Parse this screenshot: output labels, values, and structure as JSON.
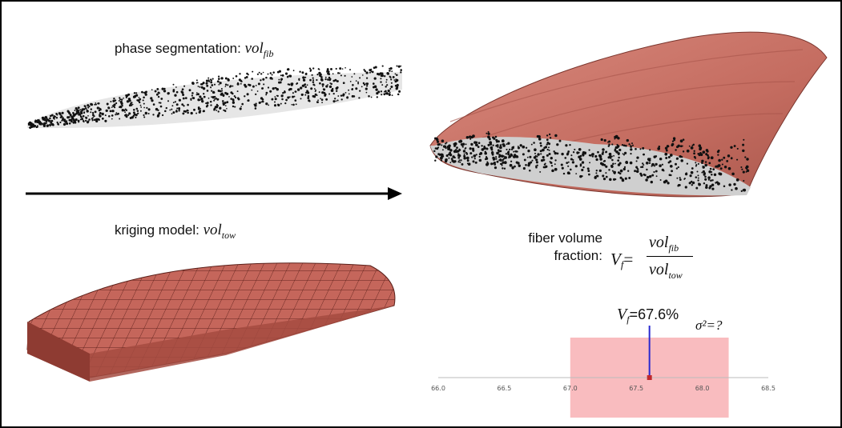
{
  "labels": {
    "phase_seg_text": "phase segmentation:",
    "phase_seg_var": "vol",
    "phase_seg_sub": "fib",
    "kriging_text": "kriging model:",
    "kriging_var": "vol",
    "kriging_sub": "tow",
    "fvf_line1": "fiber volume",
    "fvf_line2": "fraction:",
    "formula_lhs": "V",
    "formula_lhs_sub": "f",
    "formula_eq": "=",
    "num_var": "vol",
    "num_sub": "fib",
    "den_var": "vol",
    "den_sub": "tow",
    "vf_label": "V",
    "vf_sub": "f",
    "vf_value": "=67.6%",
    "sigma_label": "σ²=?"
  },
  "chart_data": {
    "type": "interval",
    "xlim": [
      66.0,
      68.5
    ],
    "ticks": [
      "66.0",
      "66.5",
      "67.0",
      "67.5",
      "68.0",
      "68.5"
    ],
    "point": 67.6,
    "interval": [
      67.0,
      68.2
    ],
    "colors": {
      "interval": "#f9bcbf",
      "marker": "#c0282d",
      "line": "#2a2ad0",
      "axis": "#bbbbbb"
    }
  },
  "colors": {
    "surface": "#c97165",
    "surface_dark": "#8f3f36",
    "dots": "#111111"
  }
}
